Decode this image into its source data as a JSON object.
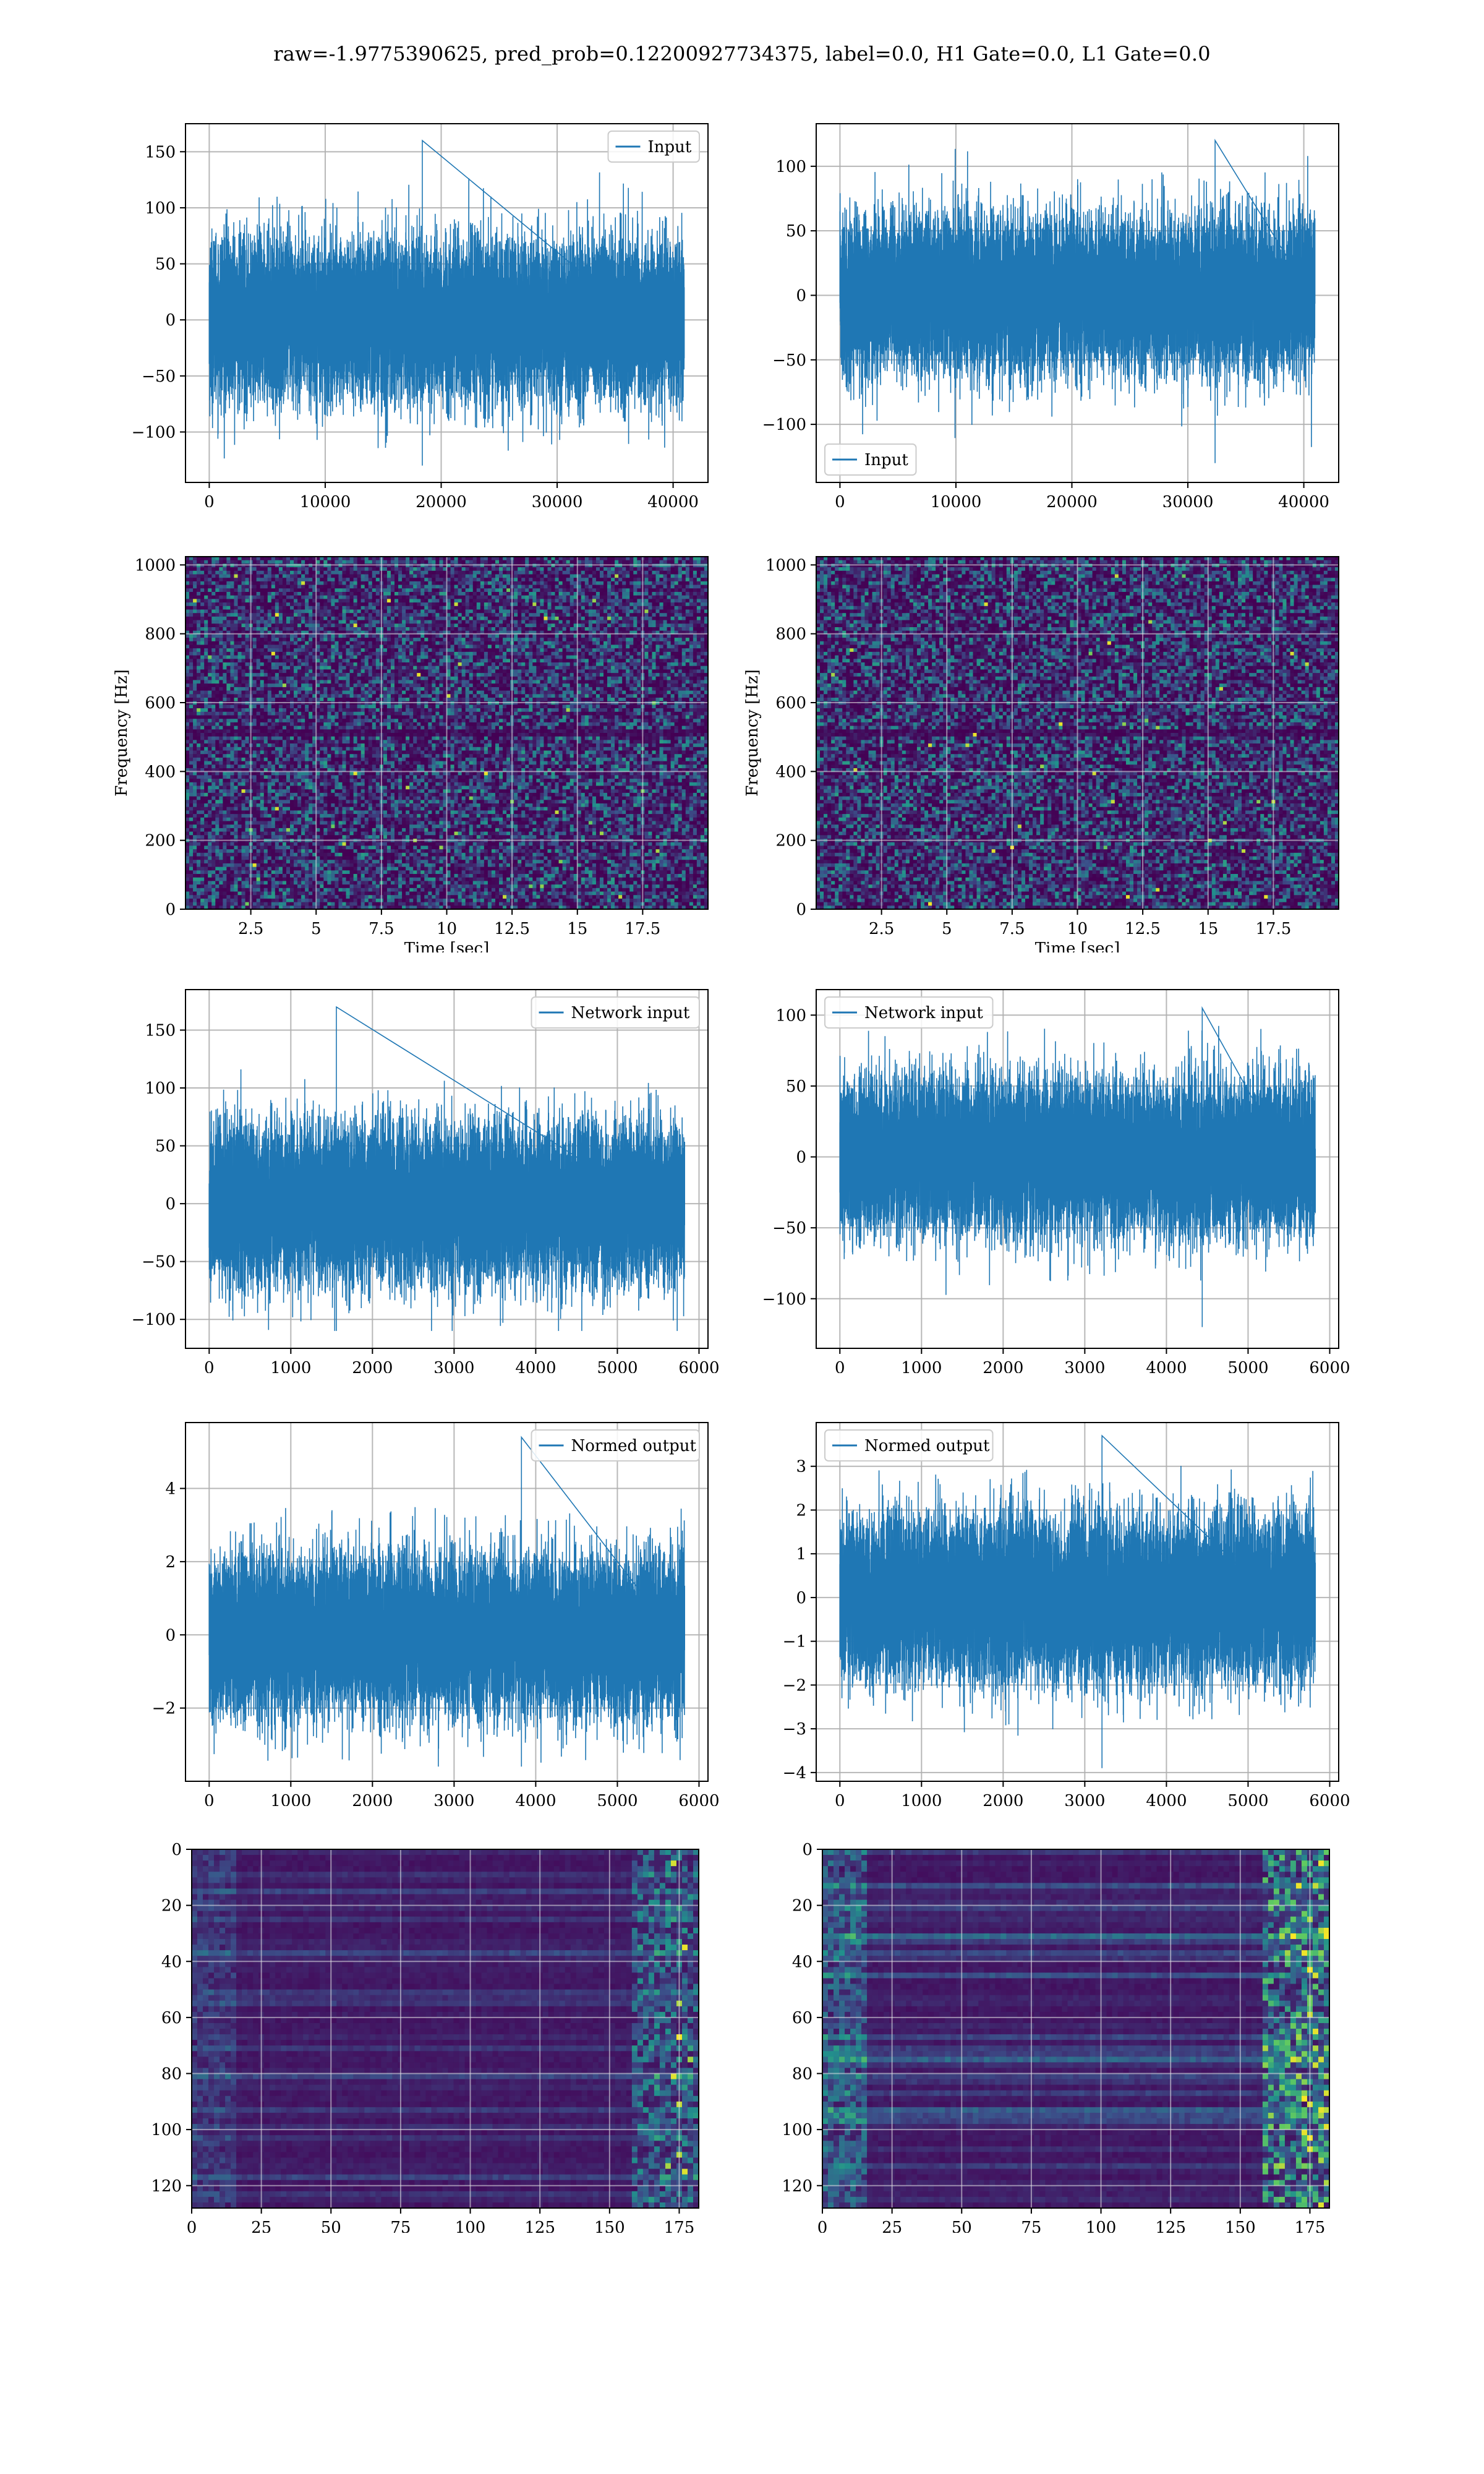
{
  "suptitle": "raw=-1.9775390625, pred_prob=0.12200927734375, label=0.0, H1 Gate=0.0, L1 Gate=0.0",
  "colors": {
    "series": "#1f77b4",
    "grid": "#b0b0b0",
    "viridis_dark": "#440154"
  },
  "chart_data": [
    {
      "id": "h1-input",
      "type": "line",
      "title": "",
      "xlabel": "",
      "ylabel": "",
      "series": [
        {
          "name": "Input",
          "n": 40960,
          "y_range": [
            -130,
            160
          ]
        }
      ],
      "xlim": [
        -2048,
        43008
      ],
      "ylim": [
        -145,
        175
      ],
      "xticks": [
        0,
        10000,
        20000,
        30000,
        40000
      ],
      "yticks": [
        -100,
        -50,
        0,
        50,
        100,
        150
      ],
      "legend": "upper right",
      "grid": true
    },
    {
      "id": "l1-input",
      "type": "line",
      "title": "",
      "xlabel": "",
      "ylabel": "",
      "series": [
        {
          "name": "Input",
          "n": 40960,
          "y_range": [
            -130,
            120
          ]
        }
      ],
      "xlim": [
        -2048,
        43008
      ],
      "ylim": [
        -145,
        133
      ],
      "xticks": [
        0,
        10000,
        20000,
        30000,
        40000
      ],
      "yticks": [
        -100,
        -50,
        0,
        50,
        100
      ],
      "legend": "lower left",
      "grid": true
    },
    {
      "id": "h1-spectrogram",
      "type": "heatmap",
      "title": "",
      "xlabel": "Time [sec]",
      "ylabel": "Frequency [Hz]",
      "xlim": [
        0,
        20
      ],
      "ylim": [
        0,
        1024
      ],
      "xticks": [
        2.5,
        5.0,
        7.5,
        10.0,
        12.5,
        15.0,
        17.5
      ],
      "yticks": [
        0,
        200,
        400,
        600,
        800,
        1000
      ],
      "colormap": "viridis",
      "grid": true
    },
    {
      "id": "l1-spectrogram",
      "type": "heatmap",
      "title": "",
      "xlabel": "Time [sec]",
      "ylabel": "Frequency [Hz]",
      "xlim": [
        0,
        20
      ],
      "ylim": [
        0,
        1024
      ],
      "xticks": [
        2.5,
        5.0,
        7.5,
        10.0,
        12.5,
        15.0,
        17.5
      ],
      "yticks": [
        0,
        200,
        400,
        600,
        800,
        1000
      ],
      "colormap": "viridis",
      "grid": true
    },
    {
      "id": "h1-network-input",
      "type": "line",
      "title": "",
      "xlabel": "",
      "ylabel": "",
      "series": [
        {
          "name": "Network input",
          "n": 5824,
          "y_range": [
            -110,
            170
          ]
        }
      ],
      "xlim": [
        -290,
        6110
      ],
      "ylim": [
        -125,
        185
      ],
      "xticks": [
        0,
        1000,
        2000,
        3000,
        4000,
        5000,
        6000
      ],
      "yticks": [
        -100,
        -50,
        0,
        50,
        100,
        150
      ],
      "legend": "upper right",
      "grid": true
    },
    {
      "id": "l1-network-input",
      "type": "line",
      "title": "",
      "xlabel": "",
      "ylabel": "",
      "series": [
        {
          "name": "Network input",
          "n": 5824,
          "y_range": [
            -120,
            105
          ]
        }
      ],
      "xlim": [
        -290,
        6110
      ],
      "ylim": [
        -135,
        118
      ],
      "xticks": [
        0,
        1000,
        2000,
        3000,
        4000,
        5000,
        6000
      ],
      "yticks": [
        -100,
        -50,
        0,
        50,
        100
      ],
      "legend": "upper left",
      "grid": true
    },
    {
      "id": "h1-normed-output",
      "type": "line",
      "title": "",
      "xlabel": "",
      "ylabel": "",
      "series": [
        {
          "name": "Normed output",
          "n": 5824,
          "y_range": [
            -3.6,
            5.4
          ]
        }
      ],
      "xlim": [
        -290,
        6110
      ],
      "ylim": [
        -4.0,
        5.8
      ],
      "xticks": [
        0,
        1000,
        2000,
        3000,
        4000,
        5000,
        6000
      ],
      "yticks": [
        -2,
        0,
        2,
        4
      ],
      "legend": "upper right",
      "grid": true
    },
    {
      "id": "l1-normed-output",
      "type": "line",
      "title": "",
      "xlabel": "",
      "ylabel": "",
      "series": [
        {
          "name": "Normed output",
          "n": 5824,
          "y_range": [
            -3.9,
            3.7
          ]
        }
      ],
      "xlim": [
        -290,
        6110
      ],
      "ylim": [
        -4.2,
        4.0
      ],
      "xticks": [
        0,
        1000,
        2000,
        3000,
        4000,
        5000,
        6000
      ],
      "yticks": [
        -4,
        -3,
        -2,
        -1,
        0,
        1,
        2,
        3
      ],
      "legend": "upper left",
      "grid": true
    },
    {
      "id": "h1-feature-map",
      "type": "heatmap",
      "title": "",
      "xlabel": "",
      "ylabel": "",
      "xlim": [
        0,
        182
      ],
      "ylim": [
        128,
        0
      ],
      "xticks": [
        0,
        25,
        50,
        75,
        100,
        125,
        150,
        175
      ],
      "yticks": [
        0,
        20,
        40,
        60,
        80,
        100,
        120
      ],
      "colormap": "viridis",
      "grid": true
    },
    {
      "id": "l1-feature-map",
      "type": "heatmap",
      "title": "",
      "xlabel": "",
      "ylabel": "",
      "xlim": [
        0,
        182
      ],
      "ylim": [
        128,
        0
      ],
      "xticks": [
        0,
        25,
        50,
        75,
        100,
        125,
        150,
        175
      ],
      "yticks": [
        0,
        20,
        40,
        60,
        80,
        100,
        120
      ],
      "colormap": "viridis",
      "grid": true
    }
  ]
}
